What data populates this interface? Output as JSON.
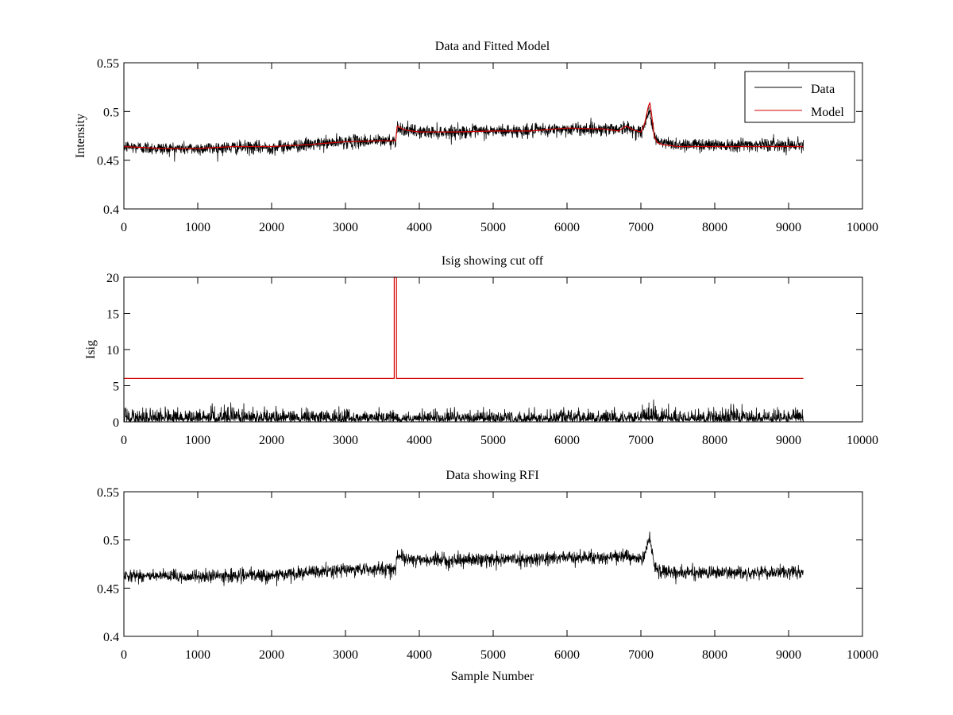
{
  "figure": {
    "colors": {
      "data": "#000000",
      "model": "#d40000"
    }
  },
  "chart_data": [
    {
      "id": "top",
      "type": "line",
      "title": "Data and Fitted Model",
      "xlabel": "",
      "ylabel": "Intensity",
      "xlim": [
        0,
        10000
      ],
      "ylim": [
        0.4,
        0.55
      ],
      "xticks": [
        0,
        1000,
        2000,
        3000,
        4000,
        5000,
        6000,
        7000,
        8000,
        9000,
        10000
      ],
      "yticks": [
        0.4,
        0.45,
        0.5,
        0.55
      ],
      "ytick_labels": [
        "0.4",
        "0.45",
        "0.5",
        "0.55"
      ],
      "grid": false,
      "legend": {
        "placement": "top-right",
        "entries": [
          "Data",
          "Model"
        ]
      },
      "series": [
        {
          "name": "Data",
          "color": "#000000",
          "style": "noisy",
          "noise": 0.006,
          "x": [
            0,
            500,
            1000,
            1500,
            2000,
            2500,
            3000,
            3500,
            3680,
            3700,
            3800,
            4000,
            4500,
            5000,
            5500,
            6000,
            6500,
            6800,
            6900,
            7000,
            7050,
            7120,
            7180,
            7250,
            7500,
            8000,
            8500,
            9000,
            9200
          ],
          "values": [
            0.464,
            0.462,
            0.462,
            0.463,
            0.463,
            0.466,
            0.469,
            0.47,
            0.47,
            0.484,
            0.481,
            0.479,
            0.479,
            0.48,
            0.48,
            0.482,
            0.482,
            0.483,
            0.481,
            0.479,
            0.485,
            0.503,
            0.475,
            0.468,
            0.466,
            0.466,
            0.466,
            0.466,
            0.466
          ]
        },
        {
          "name": "Model",
          "color": "#d40000",
          "style": "smooth",
          "x": [
            0,
            500,
            1000,
            1500,
            2000,
            2500,
            3000,
            3500,
            3680,
            3700,
            3800,
            4000,
            4500,
            5000,
            5500,
            6000,
            6500,
            6700,
            6800,
            6900,
            7000,
            7050,
            7100,
            7120,
            7140,
            7180,
            7220,
            7300,
            7500,
            8000,
            8500,
            9000,
            9200
          ],
          "values": [
            0.464,
            0.462,
            0.462,
            0.464,
            0.464,
            0.466,
            0.469,
            0.47,
            0.47,
            0.485,
            0.481,
            0.479,
            0.479,
            0.48,
            0.48,
            0.483,
            0.482,
            0.48,
            0.485,
            0.481,
            0.479,
            0.487,
            0.505,
            0.509,
            0.5,
            0.475,
            0.468,
            0.466,
            0.464,
            0.464,
            0.464,
            0.464,
            0.464
          ]
        }
      ]
    },
    {
      "id": "middle",
      "type": "line",
      "title": "Isig showing cut off",
      "xlabel": "",
      "ylabel": "Isig",
      "xlim": [
        0,
        10000
      ],
      "ylim": [
        0,
        20
      ],
      "xticks": [
        0,
        1000,
        2000,
        3000,
        4000,
        5000,
        6000,
        7000,
        8000,
        9000,
        10000
      ],
      "yticks": [
        0,
        5,
        10,
        15,
        20
      ],
      "ytick_labels": [
        "0",
        "5",
        "10",
        "15",
        "20"
      ],
      "grid": false,
      "series": [
        {
          "color": "#000000",
          "style": "abs-noise",
          "noise": 1.0,
          "x": [
            0,
            1500,
            3000,
            5000,
            7000,
            7400,
            8000,
            9200
          ],
          "values": [
            0.8,
            0.9,
            0.7,
            0.7,
            0.8,
            0.9,
            0.8,
            0.8
          ]
        },
        {
          "color": "#d40000",
          "style": "step",
          "x": [
            0,
            3660,
            3660,
            3690,
            3690,
            9200
          ],
          "values": [
            6,
            6,
            20,
            20,
            6,
            6
          ]
        }
      ]
    },
    {
      "id": "bottom",
      "type": "line",
      "title": "Data showing RFI",
      "xlabel": "Sample Number",
      "ylabel": "",
      "xlim": [
        0,
        10000
      ],
      "ylim": [
        0.4,
        0.55
      ],
      "xticks": [
        0,
        1000,
        2000,
        3000,
        4000,
        5000,
        6000,
        7000,
        8000,
        9000,
        10000
      ],
      "yticks": [
        0.4,
        0.45,
        0.5,
        0.55
      ],
      "ytick_labels": [
        "0.4",
        "0.45",
        "0.5",
        "0.55"
      ],
      "grid": false,
      "series": [
        {
          "color": "#000000",
          "style": "noisy",
          "noise": 0.006,
          "x": [
            0,
            500,
            1000,
            1500,
            2000,
            2500,
            3000,
            3500,
            3680,
            3700,
            3800,
            4000,
            4500,
            5000,
            5500,
            6000,
            6500,
            6800,
            6900,
            7000,
            7050,
            7120,
            7180,
            7250,
            7500,
            8000,
            8500,
            9000,
            9200
          ],
          "values": [
            0.464,
            0.462,
            0.462,
            0.463,
            0.463,
            0.466,
            0.469,
            0.47,
            0.47,
            0.484,
            0.481,
            0.479,
            0.479,
            0.48,
            0.48,
            0.482,
            0.482,
            0.483,
            0.481,
            0.479,
            0.485,
            0.503,
            0.475,
            0.468,
            0.466,
            0.466,
            0.466,
            0.466,
            0.466
          ]
        }
      ]
    }
  ]
}
